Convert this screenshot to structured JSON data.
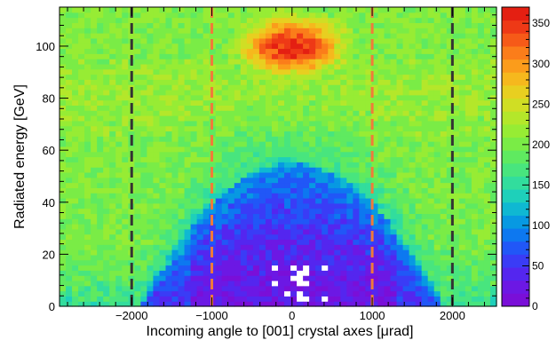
{
  "chart_data": {
    "type": "heatmap",
    "title": "",
    "xlabel": "Incoming angle to [001] crystal axes  [μrad]",
    "ylabel": "Radiated energy [GeV]",
    "xlim": [
      -2900,
      2550
    ],
    "ylim": [
      0,
      115
    ],
    "x_ticks": [
      -2000,
      -1000,
      0,
      1000,
      2000
    ],
    "x_tick_labels": [
      "−2000",
      "−1000",
      "0",
      "1000",
      "2000"
    ],
    "y_ticks": [
      0,
      20,
      40,
      60,
      80,
      100
    ],
    "y_tick_labels": [
      "0",
      "20",
      "40",
      "60",
      "80",
      "100"
    ],
    "colorbar": {
      "range": [
        0,
        370
      ],
      "ticks": [
        0,
        50,
        100,
        150,
        200,
        250,
        300,
        350
      ],
      "tick_labels": [
        "0",
        "50",
        "100",
        "150",
        "200",
        "250",
        "300",
        "350"
      ]
    },
    "grid": false,
    "legend": "none",
    "bins": {
      "x_count": 70,
      "y_count": 58
    },
    "density_features": {
      "channeling_peak": {
        "x_center": 0,
        "x_halfwidth": 850,
        "y_range": [
          85,
          112
        ],
        "peak_counts": 360
      },
      "low_energy_region": {
        "x_center": 0,
        "y_max_at_center": 55,
        "counts": [
          0,
          80
        ]
      },
      "background_counts": [
        150,
        230
      ],
      "empty_bins_region": {
        "x_range": [
          -400,
          450
        ],
        "y_range": [
          0,
          15
        ]
      }
    },
    "vertical_lines": [
      {
        "x": -2000,
        "color": "#333333",
        "style": "dashed"
      },
      {
        "x": -1000,
        "color": "#f07a3a",
        "style": "dashed"
      },
      {
        "x": 1000,
        "color": "#f07a3a",
        "style": "dashed"
      },
      {
        "x": 2000,
        "color": "#333333",
        "style": "dashed"
      }
    ]
  }
}
